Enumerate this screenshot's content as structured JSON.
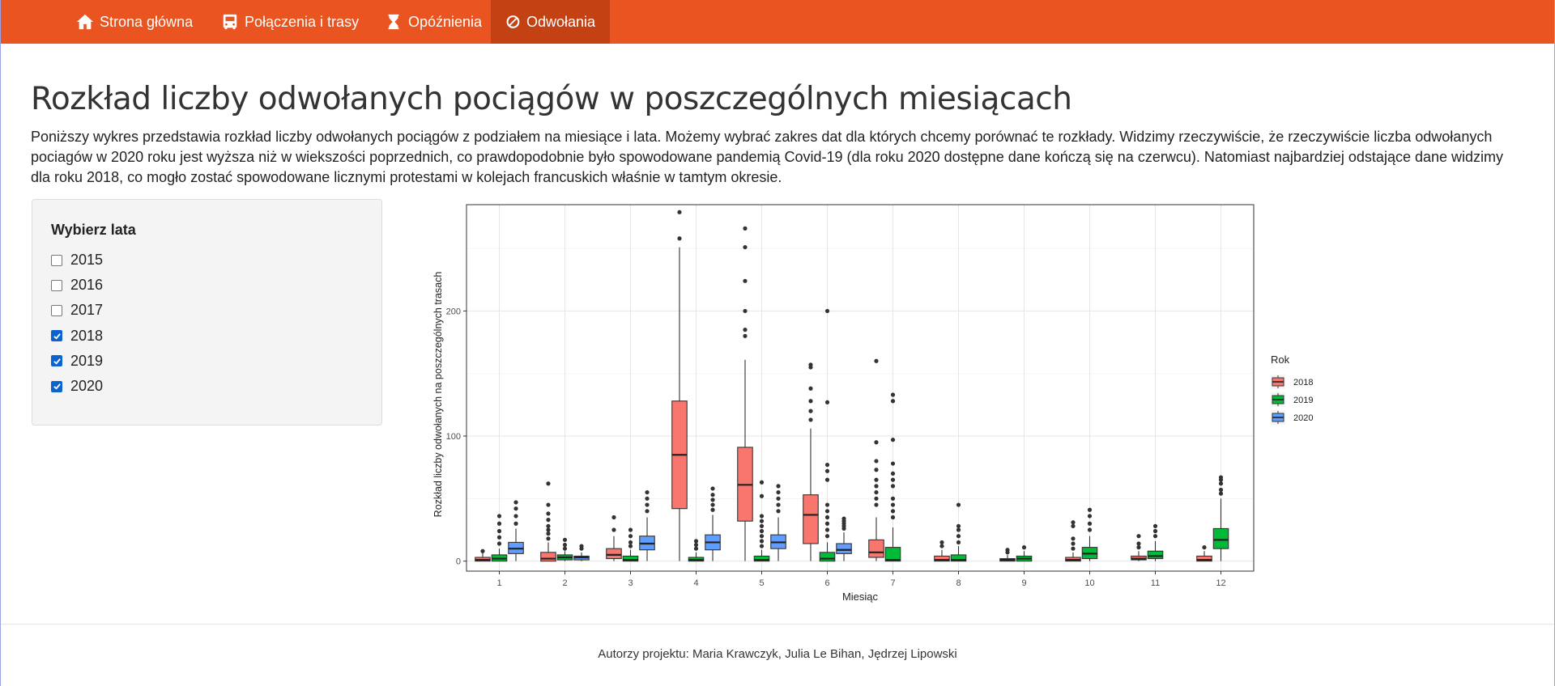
{
  "nav": {
    "items": [
      {
        "label": "Strona główna",
        "icon": "home-icon",
        "active": false
      },
      {
        "label": "Połączenia i trasy",
        "icon": "bus-icon",
        "active": false
      },
      {
        "label": "Opóźnienia",
        "icon": "hourglass-icon",
        "active": false
      },
      {
        "label": "Odwołania",
        "icon": "ban-icon",
        "active": true
      }
    ]
  },
  "page": {
    "title": "Rozkład liczby odwołanych pociągów w poszczególnych miesiącach",
    "description": "Poniższy wykres przedstawia rozkład liczby odwołanych pociągów z podziałem na miesiące i lata. Możemy wybrać zakres dat dla których chcemy porównać te rozkłady. Widzimy rzeczywiście, że rzeczywiście liczba odwołanych pociagów w 2020 roku jest wyższa niż w wiekszości poprzednich, co prawdopodobnie było spowodowane pandemią Covid-19 (dla roku 2020 dostępne dane kończą się na czerwcu). Natomiast najbardziej odstające dane widzimy dla roku 2018, co mogło zostać spowodowane licznymi protestami w kolejach francuskich właśnie w tamtym okresie."
  },
  "sidebar": {
    "label": "Wybierz lata",
    "options": [
      {
        "label": "2015",
        "checked": false
      },
      {
        "label": "2016",
        "checked": false
      },
      {
        "label": "2017",
        "checked": false
      },
      {
        "label": "2018",
        "checked": true
      },
      {
        "label": "2019",
        "checked": true
      },
      {
        "label": "2020",
        "checked": true
      }
    ]
  },
  "footer": {
    "text": "Autorzy projektu: Maria Krawczyk, Julia Le Bihan, Jędrzej Lipowski"
  },
  "colors": {
    "navbar": "#E95420",
    "navbar_active": "#C34113",
    "checkbox": "#0b63ce"
  },
  "chart_data": {
    "type": "boxplot",
    "xlabel": "Miesiąc",
    "ylabel": "Rozkład liczby odwołanych na poszczególnych trasach",
    "categories": [
      "1",
      "2",
      "3",
      "4",
      "5",
      "6",
      "7",
      "8",
      "9",
      "10",
      "11",
      "12"
    ],
    "yticks": [
      0,
      100,
      200
    ],
    "ylim": [
      -8,
      285
    ],
    "grid": true,
    "legend": {
      "title": "Rok",
      "position": "right"
    },
    "series": [
      {
        "name": "2018",
        "color": "#F8766D",
        "boxes": [
          {
            "x": "1",
            "q1": 0,
            "median": 1,
            "q3": 3,
            "wlo": 0,
            "whi": 7,
            "outliers": [
              8
            ]
          },
          {
            "x": "2",
            "q1": 0,
            "median": 2,
            "q3": 7,
            "wlo": 0,
            "whi": 15,
            "outliers": [
              18,
              22,
              25,
              28,
              33,
              38,
              45,
              62
            ]
          },
          {
            "x": "3",
            "q1": 2,
            "median": 5,
            "q3": 10,
            "wlo": 0,
            "whi": 20,
            "outliers": [
              25,
              35
            ]
          },
          {
            "x": "4",
            "q1": 42,
            "median": 85,
            "q3": 128,
            "wlo": 0,
            "whi": 251,
            "outliers": [
              258,
              279
            ]
          },
          {
            "x": "5",
            "q1": 32,
            "median": 61,
            "q3": 91,
            "wlo": 0,
            "whi": 161,
            "outliers": [
              180,
              185,
              200,
              224,
              251,
              266
            ]
          },
          {
            "x": "6",
            "q1": 14,
            "median": 37,
            "q3": 53,
            "wlo": 0,
            "whi": 106,
            "outliers": [
              113,
              120,
              128,
              138,
              155,
              157
            ]
          },
          {
            "x": "7",
            "q1": 3,
            "median": 7,
            "q3": 17,
            "wlo": 0,
            "whi": 35,
            "outliers": [
              45,
              50,
              55,
              60,
              65,
              73,
              80,
              95,
              160
            ]
          },
          {
            "x": "8",
            "q1": 0,
            "median": 1,
            "q3": 4,
            "wlo": 0,
            "whi": 9,
            "outliers": [
              12,
              15
            ]
          },
          {
            "x": "9",
            "q1": 0,
            "median": 1,
            "q3": 2,
            "wlo": 0,
            "whi": 5,
            "outliers": [
              7,
              9
            ]
          },
          {
            "x": "10",
            "q1": 0,
            "median": 1,
            "q3": 3,
            "wlo": 0,
            "whi": 7,
            "outliers": [
              10,
              14,
              18,
              28,
              31
            ]
          },
          {
            "x": "11",
            "q1": 1,
            "median": 2,
            "q3": 4,
            "wlo": 0,
            "whi": 8,
            "outliers": [
              11,
              14,
              20
            ]
          },
          {
            "x": "12",
            "q1": 0,
            "median": 1,
            "q3": 4,
            "wlo": 0,
            "whi": 8,
            "outliers": [
              11
            ]
          }
        ]
      },
      {
        "name": "2019",
        "color": "#00BA38",
        "boxes": [
          {
            "x": "1",
            "q1": 0,
            "median": 2,
            "q3": 5,
            "wlo": 0,
            "whi": 10,
            "outliers": [
              14,
              19,
              24,
              30,
              36
            ]
          },
          {
            "x": "2",
            "q1": 1,
            "median": 3,
            "q3": 5,
            "wlo": 0,
            "whi": 8,
            "outliers": [
              10,
              13,
              17
            ]
          },
          {
            "x": "3",
            "q1": 0,
            "median": 1,
            "q3": 4,
            "wlo": 0,
            "whi": 9,
            "outliers": [
              12,
              15,
              20,
              25
            ]
          },
          {
            "x": "4",
            "q1": 0,
            "median": 1,
            "q3": 3,
            "wlo": 0,
            "whi": 7,
            "outliers": [
              10,
              13,
              16
            ]
          },
          {
            "x": "5",
            "q1": 0,
            "median": 1,
            "q3": 4,
            "wlo": 0,
            "whi": 9,
            "outliers": [
              12,
              16,
              20,
              24,
              28,
              32,
              36,
              52,
              63
            ]
          },
          {
            "x": "6",
            "q1": 0,
            "median": 2,
            "q3": 7,
            "wlo": 0,
            "whi": 15,
            "outliers": [
              20,
              25,
              30,
              35,
              40,
              45,
              65,
              72,
              77,
              127,
              200
            ]
          },
          {
            "x": "7",
            "q1": 0,
            "median": 1,
            "q3": 11,
            "wlo": 0,
            "whi": 27,
            "outliers": [
              35,
              40,
              45,
              50,
              60,
              65,
              70,
              78,
              97,
              128,
              133
            ]
          },
          {
            "x": "8",
            "q1": 0,
            "median": 1,
            "q3": 5,
            "wlo": 0,
            "whi": 12,
            "outliers": [
              15,
              20,
              25,
              28,
              45
            ]
          },
          {
            "x": "9",
            "q1": 0,
            "median": 2,
            "q3": 4,
            "wlo": 0,
            "whi": 8,
            "outliers": [
              11
            ]
          },
          {
            "x": "10",
            "q1": 2,
            "median": 6,
            "q3": 11,
            "wlo": 0,
            "whi": 20,
            "outliers": [
              25,
              30,
              36,
              41
            ]
          },
          {
            "x": "11",
            "q1": 2,
            "median": 4,
            "q3": 8,
            "wlo": 0,
            "whi": 16,
            "outliers": [
              20,
              24,
              28
            ]
          },
          {
            "x": "12",
            "q1": 10,
            "median": 17,
            "q3": 26,
            "wlo": 0,
            "whi": 50,
            "outliers": [
              54,
              57,
              62,
              65,
              67
            ]
          }
        ]
      },
      {
        "name": "2020",
        "color": "#619CFF",
        "boxes": [
          {
            "x": "1",
            "q1": 6,
            "median": 10,
            "q3": 15,
            "wlo": 0,
            "whi": 26,
            "outliers": [
              30,
              36,
              42,
              47
            ]
          },
          {
            "x": "2",
            "q1": 1,
            "median": 3,
            "q3": 4,
            "wlo": 0,
            "whi": 7,
            "outliers": [
              10,
              12
            ]
          },
          {
            "x": "3",
            "q1": 9,
            "median": 14,
            "q3": 20,
            "wlo": 0,
            "whi": 35,
            "outliers": [
              40,
              45,
              50,
              55
            ]
          },
          {
            "x": "4",
            "q1": 9,
            "median": 15,
            "q3": 21,
            "wlo": 0,
            "whi": 37,
            "outliers": [
              41,
              45,
              49,
              53,
              58
            ]
          },
          {
            "x": "5",
            "q1": 10,
            "median": 15,
            "q3": 21,
            "wlo": 0,
            "whi": 35,
            "outliers": [
              40,
              45,
              50,
              55,
              60
            ]
          },
          {
            "x": "6",
            "q1": 6,
            "median": 9,
            "q3": 14,
            "wlo": 0,
            "whi": 23,
            "outliers": [
              26,
              28,
              30,
              32,
              34
            ]
          }
        ]
      }
    ]
  }
}
